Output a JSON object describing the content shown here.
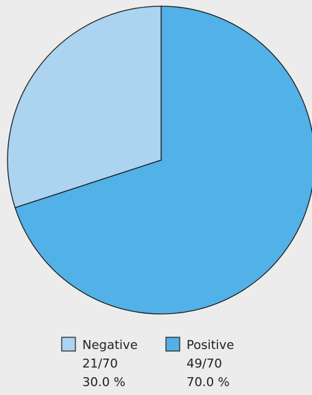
{
  "chart_data": {
    "type": "pie",
    "slices": [
      {
        "label": "Negative",
        "fraction_text": "21/70",
        "percent_text": "30.0 %",
        "value": 21,
        "color": "#acd3f0"
      },
      {
        "label": "Positive",
        "fraction_text": "49/70",
        "percent_text": "70.0 %",
        "value": 49,
        "color": "#52b1e6"
      }
    ],
    "total": 70,
    "legend_position": "bottom"
  }
}
